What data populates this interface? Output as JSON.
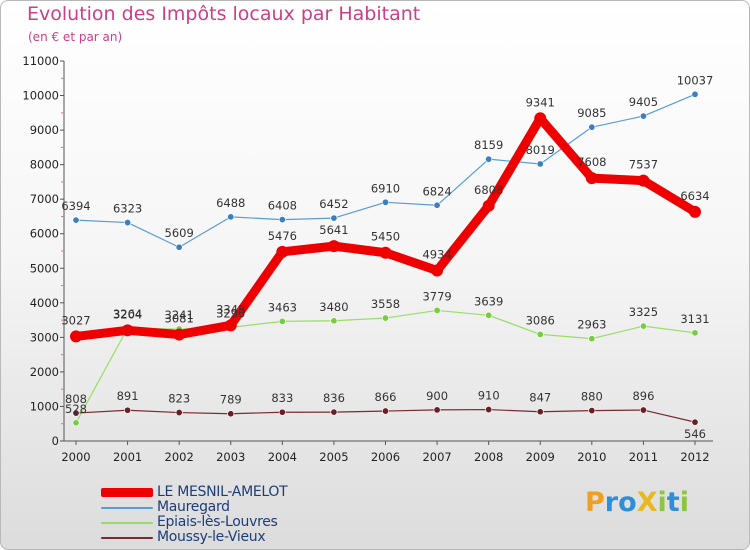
{
  "chart_data": {
    "type": "line",
    "title": "Evolution des Impôts locaux par Habitant",
    "subtitle": "(en € et par an)",
    "xlabel": "",
    "ylabel": "",
    "ylim": [
      0,
      11000
    ],
    "yticks": [
      0,
      1000,
      2000,
      3000,
      4000,
      5000,
      6000,
      7000,
      8000,
      9000,
      10000,
      11000
    ],
    "x": [
      "2000",
      "2001",
      "2002",
      "2003",
      "2004",
      "2005",
      "2006",
      "2007",
      "2008",
      "2009",
      "2010",
      "2011",
      "2012"
    ],
    "series": [
      {
        "name": "LE MESNIL-AMELOT",
        "color": "#ee0000",
        "width": 9,
        "values": [
          3027,
          3204,
          3081,
          3348,
          5476,
          5641,
          5450,
          4934,
          6808,
          9341,
          7608,
          7537,
          6634
        ],
        "labels": [
          "3027",
          "3204",
          "3081",
          "3348",
          "5476",
          "5641",
          "5450",
          "4934",
          "6808",
          "9341",
          "7608",
          "7537",
          "6634"
        ]
      },
      {
        "name": "Mauregard",
        "color": "#5a9bd5",
        "marker": "#3c7fc0",
        "width": 1.2,
        "values": [
          6394,
          6323,
          5609,
          6488,
          6408,
          6452,
          6910,
          6824,
          8159,
          8019,
          9085,
          9405,
          10037
        ],
        "labels": [
          "6394",
          "6323",
          "5609",
          "6488",
          "6408",
          "6452",
          "6910",
          "6824",
          "8159",
          "8019",
          "9085",
          "9405",
          "10037"
        ]
      },
      {
        "name": "Épiais-lès-Louvres",
        "color": "#99dd66",
        "marker": "#77cc44",
        "width": 1.2,
        "values": [
          528,
          3264,
          3241,
          3290,
          3463,
          3480,
          3558,
          3779,
          3639,
          3086,
          2963,
          3325,
          3131
        ],
        "labels": [
          "528",
          "3264",
          "3241",
          "3290",
          "3463",
          "3480",
          "3558",
          "3779",
          "3639",
          "3086",
          "2963",
          "3325",
          "3131"
        ]
      },
      {
        "name": "Moussy-le-Vieux",
        "color": "#7a2a30",
        "marker": "#6a1f25",
        "width": 1.2,
        "values": [
          808,
          891,
          823,
          789,
          833,
          836,
          866,
          900,
          910,
          847,
          880,
          896,
          546
        ],
        "labels": [
          "808",
          "891",
          "823",
          "789",
          "833",
          "836",
          "866",
          "900",
          "910",
          "847",
          "880",
          "896",
          "546"
        ]
      }
    ]
  },
  "legend": [
    {
      "label": "LE MESNIL-AMELOT",
      "color": "#ee0000"
    },
    {
      "label": "Mauregard",
      "color": "#5a9bd5"
    },
    {
      "label": "Epiais-lès-Louvres",
      "color": "#99dd66"
    },
    {
      "label": "Moussy-le-Vieux",
      "color": "#7a2a30"
    }
  ],
  "logo": {
    "text": "ProXiti",
    "letters": [
      {
        "ch": "P",
        "color": "#f0a020"
      },
      {
        "ch": "r",
        "color": "#2f8fd6"
      },
      {
        "ch": "o",
        "color": "#2f8fd6"
      },
      {
        "ch": "X",
        "color": "#e8b820"
      },
      {
        "ch": "i",
        "color": "#8cc63f"
      },
      {
        "ch": "t",
        "color": "#2f8fd6"
      },
      {
        "ch": "i",
        "color": "#8cc63f"
      }
    ]
  }
}
